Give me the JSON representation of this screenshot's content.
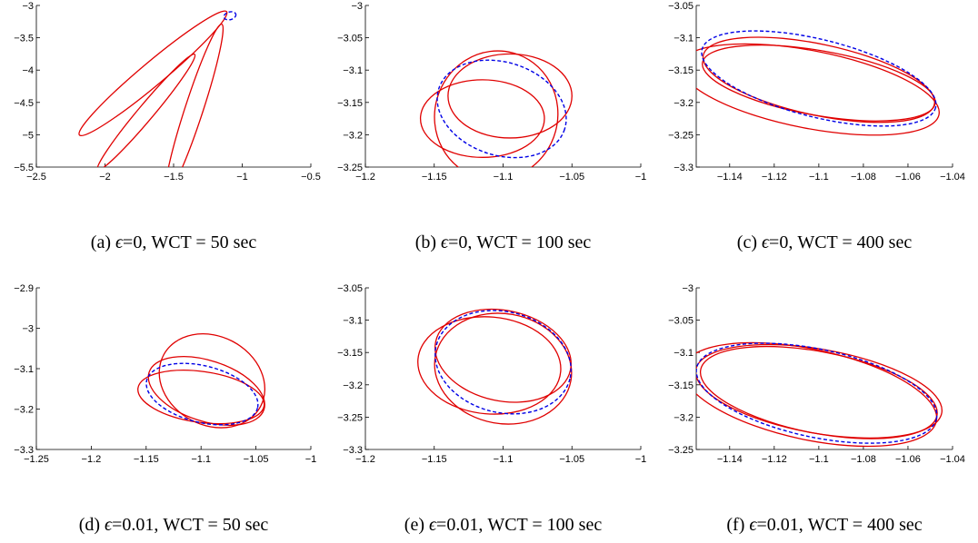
{
  "chart_data": [
    {
      "type": "line",
      "caption": {
        "label": "(a)",
        "epsilon": "=0",
        "wct": ", WCT = 50 sec"
      },
      "xlim": [
        -2.5,
        -0.5
      ],
      "ylim": [
        -5.5,
        -3
      ],
      "xticks": [
        -2.5,
        -2,
        -1.5,
        -1,
        -0.5
      ],
      "xtick_labels": [
        "−2.5",
        "−2",
        "−1.5",
        "−1",
        "−0.5"
      ],
      "yticks": [
        -5.5,
        -5,
        -4.5,
        -4,
        -3.5,
        -3
      ],
      "ytick_labels": [
        "−5.5",
        "−5",
        "−4.5",
        "−4",
        "−3.5",
        "−3"
      ],
      "series": [
        {
          "style": "solid",
          "color": "#e00000",
          "ellipses": [
            {
              "cx": -1.65,
              "cy": -4.05,
              "rx": 0.7,
              "ry": 0.18,
              "angle": 40
            },
            {
              "cx": -1.7,
              "cy": -4.65,
              "rx": 0.55,
              "ry": 0.12,
              "angle": 50
            },
            {
              "cx": -1.35,
              "cy": -4.6,
              "rx": 0.65,
              "ry": 0.14,
              "angle": 72
            }
          ]
        },
        {
          "style": "dashed",
          "color": "#0000e6",
          "ellipses": [
            {
              "cx": -1.09,
              "cy": -3.16,
              "rx": 0.045,
              "ry": 0.06,
              "angle": 15
            }
          ]
        }
      ]
    },
    {
      "type": "line",
      "caption": {
        "label": "(b)",
        "epsilon": "=0",
        "wct": ", WCT = 100 sec"
      },
      "xlim": [
        -1.2,
        -1
      ],
      "ylim": [
        -3.25,
        -3
      ],
      "xticks": [
        -1.2,
        -1.15,
        -1.1,
        -1.05,
        -1
      ],
      "xtick_labels": [
        "−1.2",
        "−1.15",
        "−1.1",
        "−1.05",
        "−1"
      ],
      "yticks": [
        -3.25,
        -3.2,
        -3.15,
        -3.1,
        -3.05,
        -3
      ],
      "ytick_labels": [
        "−3.25",
        "−3.2",
        "−3.15",
        "−3.1",
        "−3.05",
        "−3"
      ],
      "series": [
        {
          "style": "solid",
          "color": "#e00000",
          "ellipses": [
            {
              "cx": -1.115,
              "cy": -3.175,
              "rx": 0.045,
              "ry": 0.06,
              "angle": 0
            },
            {
              "cx": -1.105,
              "cy": -3.17,
              "rx": 0.047,
              "ry": 0.095,
              "angle": 75
            },
            {
              "cx": -1.095,
              "cy": -3.14,
              "rx": 0.045,
              "ry": 0.065,
              "angle": 0
            }
          ]
        },
        {
          "style": "dashed",
          "color": "#0000e6",
          "ellipses": [
            {
              "cx": -1.101,
              "cy": -3.16,
              "rx": 0.048,
              "ry": 0.072,
              "angle": -18
            }
          ]
        }
      ]
    },
    {
      "type": "line",
      "caption": {
        "label": "(c)",
        "epsilon": "=0",
        "wct": ", WCT = 400 sec"
      },
      "xlim": [
        -1.155,
        -1.04
      ],
      "ylim": [
        -3.3,
        -3.05
      ],
      "xticks": [
        -1.14,
        -1.12,
        -1.1,
        -1.08,
        -1.06,
        -1.04
      ],
      "xtick_labels": [
        "−1.14",
        "−1.12",
        "−1.1",
        "−1.08",
        "−1.06",
        "−1.04"
      ],
      "yticks": [
        -3.3,
        -3.25,
        -3.2,
        -3.15,
        -3.1,
        -3.05
      ],
      "ytick_labels": [
        "−3.3",
        "−3.25",
        "−3.2",
        "−3.15",
        "−3.1",
        "−3.05"
      ],
      "series": [
        {
          "style": "solid",
          "color": "#e00000",
          "ellipses": [
            {
              "cx": -1.1,
              "cy": -3.165,
              "rx": 0.053,
              "ry": 0.055,
              "angle": -12
            },
            {
              "cx": -1.104,
              "cy": -3.18,
              "rx": 0.059,
              "ry": 0.06,
              "angle": -11
            },
            {
              "cx": -1.1,
              "cy": -3.17,
              "rx": 0.053,
              "ry": 0.05,
              "angle": -10
            }
          ]
        },
        {
          "style": "dashed",
          "color": "#0000e6",
          "ellipses": [
            {
              "cx": -1.1,
              "cy": -3.163,
              "rx": 0.054,
              "ry": 0.06,
              "angle": -14
            }
          ]
        }
      ]
    },
    {
      "type": "line",
      "caption": {
        "label": "(d)",
        "epsilon": "=0.01",
        "wct": ", WCT = 50 sec"
      },
      "xlim": [
        -1.25,
        -1
      ],
      "ylim": [
        -3.3,
        -2.9
      ],
      "xticks": [
        -1.25,
        -1.2,
        -1.15,
        -1.1,
        -1.05,
        -1
      ],
      "xtick_labels": [
        "−1.25",
        "−1.2",
        "−1.15",
        "−1.1",
        "−1.05",
        "−1"
      ],
      "yticks": [
        -3.3,
        -3.2,
        -3.1,
        -3,
        -2.9
      ],
      "ytick_labels": [
        "−3.3",
        "−3.2",
        "−3.1",
        "−3",
        "−2.9"
      ],
      "series": [
        {
          "style": "solid",
          "color": "#e00000",
          "ellipses": [
            {
              "cx": -1.1,
              "cy": -3.17,
              "rx": 0.058,
              "ry": 0.063,
              "angle": -8
            },
            {
              "cx": -1.095,
              "cy": -3.155,
              "rx": 0.055,
              "ry": 0.075,
              "angle": -18
            },
            {
              "cx": -1.09,
              "cy": -3.13,
              "rx": 0.05,
              "ry": 0.11,
              "angle": -28
            }
          ]
        },
        {
          "style": "dashed",
          "color": "#0000e6",
          "ellipses": [
            {
              "cx": -1.099,
              "cy": -3.163,
              "rx": 0.052,
              "ry": 0.07,
              "angle": -14
            }
          ]
        }
      ]
    },
    {
      "type": "line",
      "caption": {
        "label": "(e)",
        "epsilon": "=0.01",
        "wct": ", WCT = 100 sec"
      },
      "xlim": [
        -1.2,
        -1
      ],
      "ylim": [
        -3.3,
        -3.05
      ],
      "xticks": [
        -1.2,
        -1.15,
        -1.1,
        -1.05,
        -1
      ],
      "xtick_labels": [
        "−1.2",
        "−1.15",
        "−1.1",
        "−1.05",
        "−1"
      ],
      "yticks": [
        -3.3,
        -3.25,
        -3.2,
        -3.15,
        -3.1,
        -3.05
      ],
      "ytick_labels": [
        "−3.3",
        "−3.25",
        "−3.2",
        "−3.15",
        "−3.1",
        "−3.05"
      ],
      "series": [
        {
          "style": "solid",
          "color": "#e00000",
          "ellipses": [
            {
              "cx": -1.11,
              "cy": -3.17,
              "rx": 0.052,
              "ry": 0.075,
              "angle": -5
            },
            {
              "cx": -1.1,
              "cy": -3.175,
              "rx": 0.05,
              "ry": 0.085,
              "angle": -10
            },
            {
              "cx": -1.1,
              "cy": -3.155,
              "rx": 0.05,
              "ry": 0.07,
              "angle": -12
            }
          ]
        },
        {
          "style": "dashed",
          "color": "#0000e6",
          "ellipses": [
            {
              "cx": -1.1,
              "cy": -3.165,
              "rx": 0.05,
              "ry": 0.078,
              "angle": -14
            }
          ]
        }
      ]
    },
    {
      "type": "line",
      "caption": {
        "label": "(f)",
        "epsilon": "=0.01",
        "wct": ", WCT = 400 sec"
      },
      "xlim": [
        -1.155,
        -1.04
      ],
      "ylim": [
        -3.25,
        -3
      ],
      "xticks": [
        -1.14,
        -1.12,
        -1.1,
        -1.08,
        -1.06,
        -1.04
      ],
      "xtick_labels": [
        "−1.14",
        "−1.12",
        "−1.1",
        "−1.08",
        "−1.06",
        "−1.04"
      ],
      "yticks": [
        -3.25,
        -3.2,
        -3.15,
        -3.1,
        -3.05,
        -3
      ],
      "ytick_labels": [
        "−3.25",
        "−3.2",
        "−3.15",
        "−3.1",
        "−3.05",
        "−3"
      ],
      "series": [
        {
          "style": "solid",
          "color": "#e00000",
          "ellipses": [
            {
              "cx": -1.1,
              "cy": -3.16,
              "rx": 0.056,
              "ry": 0.065,
              "angle": -10
            },
            {
              "cx": -1.104,
              "cy": -3.165,
              "rx": 0.058,
              "ry": 0.07,
              "angle": -12
            },
            {
              "cx": -1.1,
              "cy": -3.162,
              "rx": 0.054,
              "ry": 0.063,
              "angle": -11
            }
          ]
        },
        {
          "style": "dashed",
          "color": "#0000e6",
          "ellipses": [
            {
              "cx": -1.101,
              "cy": -3.163,
              "rx": 0.055,
              "ry": 0.068,
              "angle": -12
            }
          ]
        }
      ]
    }
  ]
}
